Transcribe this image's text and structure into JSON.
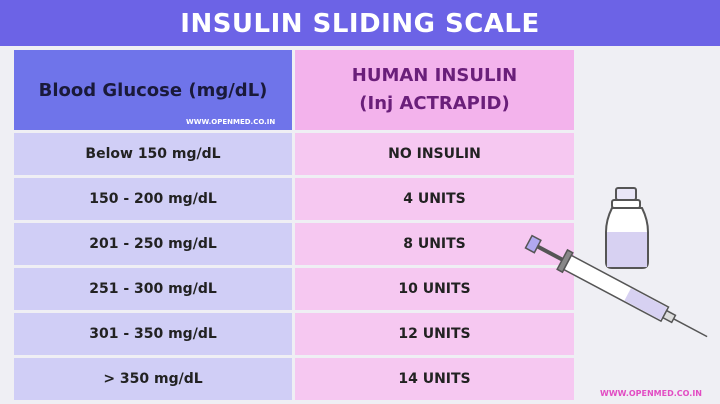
{
  "header": {
    "title": "INSULIN SLIDING SCALE"
  },
  "table": {
    "header": [
      "Blood Glucose (mg/dL)",
      [
        "HUMAN INSULIN",
        "(Inj ACTRAPID)"
      ]
    ],
    "rows": [
      [
        "Below 150 mg/dL",
        "NO INSULIN"
      ],
      [
        "150 - 200 mg/dL",
        "4 UNITS"
      ],
      [
        "201 - 250 mg/dL",
        "8 UNITS"
      ],
      [
        "251 - 300 mg/dL",
        "10 UNITS"
      ],
      [
        "301 - 350 mg/dL",
        "12 UNITS"
      ],
      [
        "> 350 mg/dL",
        "14 UNITS"
      ]
    ]
  },
  "watermarks": [
    "WWW.OPENMED.CO.IN",
    "WWW.OPENMED.CO.IN"
  ]
}
